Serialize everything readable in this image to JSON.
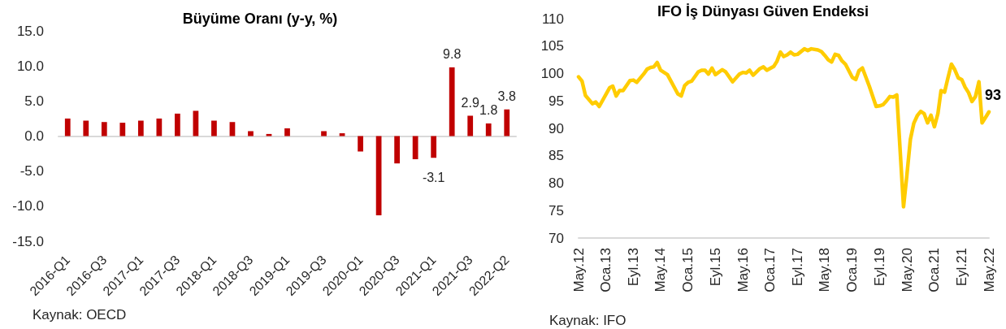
{
  "chart_data": [
    {
      "type": "bar",
      "title": "Büyüme Oranı (y-y, %)",
      "categories": [
        "2016-Q1",
        null,
        "2016-Q3",
        null,
        "2017-Q1",
        null,
        "2017-Q3",
        null,
        "2018-Q1",
        null,
        "2018-Q3",
        null,
        "2019-Q1",
        null,
        "2019-Q3",
        null,
        "2020-Q1",
        null,
        "2020-Q3",
        null,
        "2021-Q1",
        null,
        "2021-Q3",
        null,
        "2022-Q2"
      ],
      "values": [
        2.5,
        2.2,
        2.0,
        1.9,
        2.2,
        2.5,
        3.2,
        3.6,
        2.2,
        2.0,
        0.7,
        0.3,
        1.1,
        null,
        0.7,
        0.4,
        -2.2,
        -11.3,
        -3.9,
        -3.3,
        -3.1,
        9.8,
        2.9,
        1.8,
        3.8
      ],
      "value_labels": [
        null,
        null,
        null,
        null,
        null,
        null,
        null,
        null,
        null,
        null,
        null,
        null,
        null,
        null,
        null,
        null,
        null,
        null,
        null,
        null,
        "-3.1",
        "9.8",
        "2.9",
        "1.8",
        "3.8"
      ],
      "color": "#c00000",
      "ylim": [
        -15,
        15
      ],
      "yticks": [
        {
          "value": -15,
          "label": "-15.0"
        },
        {
          "value": -10,
          "label": "-10.0"
        },
        {
          "value": -5,
          "label": "-5.0"
        },
        {
          "value": 0,
          "label": "0.0"
        },
        {
          "value": 5,
          "label": "5.0"
        },
        {
          "value": 10,
          "label": "10.0"
        },
        {
          "value": 15,
          "label": "15.0"
        }
      ],
      "annotations": [
        "Kaynak: OECD"
      ]
    },
    {
      "type": "line",
      "title": "IFO İş Dünyası Güven Endeksi",
      "x": [
        "2012-05",
        "2012-06",
        "2012-07",
        "2012-09",
        "2012-10",
        "2012-11",
        "2013-02",
        "2013-03",
        "2013-04",
        "2013-05",
        "2013-06",
        "2013-08",
        "2013-09",
        "2013-10",
        "2013-12",
        "2014-01",
        "2014-02",
        "2014-03",
        "2014-04",
        "2014-05",
        "2014-07",
        "2014-10",
        "2014-11",
        "2014-12",
        "2015-01",
        "2015-02",
        "2015-04",
        "2015-05",
        "2015-06",
        "2015-07",
        "2015-08",
        "2015-09",
        "2015-11",
        "2015-12",
        "2016-02",
        "2016-04",
        "2016-05",
        "2016-06",
        "2016-07",
        "2016-08",
        "2016-10",
        "2016-11",
        "2016-12",
        "2017-02",
        "2017-03",
        "2017-04",
        "2017-05",
        "2017-06",
        "2017-07",
        "2017-08",
        "2017-09",
        "2017-11",
        "2017-12",
        "2018-01",
        "2018-03",
        "2018-04",
        "2018-05",
        "2018-06",
        "2018-07",
        "2018-08",
        "2018-09",
        "2018-10",
        "2018-11",
        "2019-01",
        "2019-02",
        "2019-03",
        "2019-04",
        "2019-06",
        "2019-08",
        "2019-09",
        "2019-10",
        "2019-11",
        "2019-12",
        "2020-01",
        "2020-02",
        "2020-04",
        "2020-05",
        "2020-06",
        "2020-07",
        "2020-08",
        "2020-09",
        "2020-10",
        "2020-11",
        "2020-12",
        "2021-01",
        "2021-02",
        "2021-03",
        "2021-04",
        "2021-05",
        "2021-06",
        "2021-07",
        "2021-08",
        "2021-09",
        "2021-10",
        "2021-11",
        "2021-12",
        "2022-01",
        "2022-02",
        "2022-03",
        "2022-04",
        "2022-05"
      ],
      "values": [
        99.4,
        98.6,
        96.0,
        94.5,
        94.8,
        94.0,
        97.4,
        97.7,
        95.9,
        96.9,
        96.9,
        98.7,
        98.8,
        98.4,
        99.9,
        100.8,
        101.1,
        101.2,
        102.0,
        100.6,
        99.8,
        96.3,
        95.9,
        97.8,
        98.4,
        98.6,
        100.3,
        100.6,
        100.6,
        99.9,
        101.0,
        99.8,
        100.7,
        100.3,
        98.5,
        99.9,
        100.2,
        100.1,
        100.6,
        99.7,
        100.9,
        101.2,
        100.6,
        101.3,
        102.2,
        103.9,
        103.1,
        103.4,
        103.9,
        103.4,
        103.5,
        104.5,
        104.2,
        104.5,
        104.3,
        104.0,
        103.3,
        102.5,
        102.1,
        103.5,
        103.3,
        102.3,
        101.7,
        99.3,
        98.9,
        100.5,
        101.0,
        97.7,
        94.0,
        94.1,
        94.3,
        95.0,
        95.8,
        95.7,
        96.1,
        75.7,
        81.5,
        88.0,
        90.9,
        92.3,
        93.1,
        92.7,
        91.0,
        92.4,
        90.3,
        92.7,
        96.9,
        96.6,
        99.2,
        101.7,
        100.7,
        99.2,
        98.9,
        97.5,
        96.5,
        94.9,
        95.8,
        98.5,
        91.0,
        92.0,
        93
      ],
      "value_labels": [
        null,
        null,
        null,
        null,
        null,
        null,
        null,
        null,
        null,
        null,
        null,
        null,
        null,
        null,
        null,
        null,
        null,
        null,
        null,
        null,
        null,
        null,
        null,
        null,
        null,
        null,
        null,
        null,
        null,
        null,
        null,
        null,
        null,
        null,
        null,
        null,
        null,
        null,
        null,
        null,
        null,
        null,
        null,
        null,
        null,
        null,
        null,
        null,
        null,
        null,
        null,
        null,
        null,
        null,
        null,
        null,
        null,
        null,
        null,
        null,
        null,
        null,
        null,
        null,
        null,
        null,
        null,
        null,
        null,
        null,
        null,
        null,
        null,
        null,
        null,
        null,
        null,
        null,
        null,
        null,
        null,
        null,
        null,
        null,
        null,
        null,
        null,
        null,
        null,
        null,
        null,
        null,
        null,
        null,
        null,
        null,
        null,
        null,
        null,
        null,
        "93"
      ],
      "color": "#ffcc00",
      "marker": "none",
      "xlim": [
        "2012-05",
        "2022-05"
      ],
      "xticks": [
        {
          "value": "2012-05",
          "label": "May.12"
        },
        {
          "value": "2013-01",
          "label": "Oca.13"
        },
        {
          "value": "2013-09",
          "label": "Eyl.13"
        },
        {
          "value": "2014-05",
          "label": "May.14"
        },
        {
          "value": "2015-01",
          "label": "Oca.15"
        },
        {
          "value": "2015-09",
          "label": "Eyl.15"
        },
        {
          "value": "2016-05",
          "label": "May.16"
        },
        {
          "value": "2017-01",
          "label": "Oca.17"
        },
        {
          "value": "2017-09",
          "label": "Eyl.17"
        },
        {
          "value": "2018-05",
          "label": "May.18"
        },
        {
          "value": "2019-01",
          "label": "Oca.19"
        },
        {
          "value": "2019-09",
          "label": "Eyl.19"
        },
        {
          "value": "2020-05",
          "label": "May.20"
        },
        {
          "value": "2021-01",
          "label": "Oca.21"
        },
        {
          "value": "2021-09",
          "label": "Eyl.21"
        },
        {
          "value": "2022-05",
          "label": "May.22"
        }
      ],
      "ylim": [
        70,
        110
      ],
      "yticks": [
        70,
        75,
        80,
        85,
        90,
        95,
        100,
        105,
        110
      ],
      "annotations": [
        "Kaynak: IFO"
      ]
    }
  ]
}
